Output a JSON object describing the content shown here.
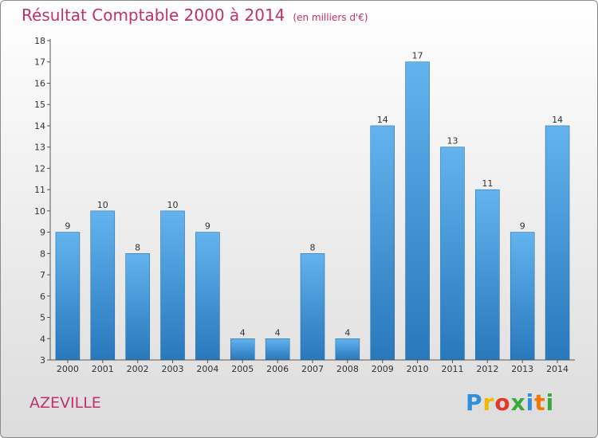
{
  "chart_data": {
    "type": "bar",
    "title": "Résultat Comptable 2000 à 2014",
    "subtitle": "(en milliers d'€)",
    "categories": [
      "2000",
      "2001",
      "2002",
      "2003",
      "2004",
      "2005",
      "2006",
      "2007",
      "2008",
      "2009",
      "2010",
      "2011",
      "2012",
      "2013",
      "2014"
    ],
    "values": [
      9,
      10,
      8,
      10,
      9,
      4,
      4,
      8,
      4,
      14,
      17,
      13,
      11,
      9,
      14
    ],
    "ylim": [
      3,
      18
    ],
    "yticks": [
      3,
      4,
      5,
      6,
      7,
      8,
      9,
      10,
      11,
      12,
      13,
      14,
      15,
      16,
      17,
      18
    ],
    "xlabel": "",
    "ylabel": "",
    "grid": false
  },
  "commune": "AZEVILLE",
  "logo": {
    "letters": [
      "P",
      "r",
      "o",
      "x",
      "i",
      "t",
      "i"
    ],
    "colors": [
      "#2f8fd8",
      "#f0b800",
      "#e23a2a",
      "#3aa83a",
      "#2f8fd8",
      "#f07800",
      "#3aa83a"
    ]
  },
  "colors": {
    "bar_top": "#5fb0ec",
    "bar_bottom": "#2a7fc0",
    "title": "#c0306a"
  }
}
